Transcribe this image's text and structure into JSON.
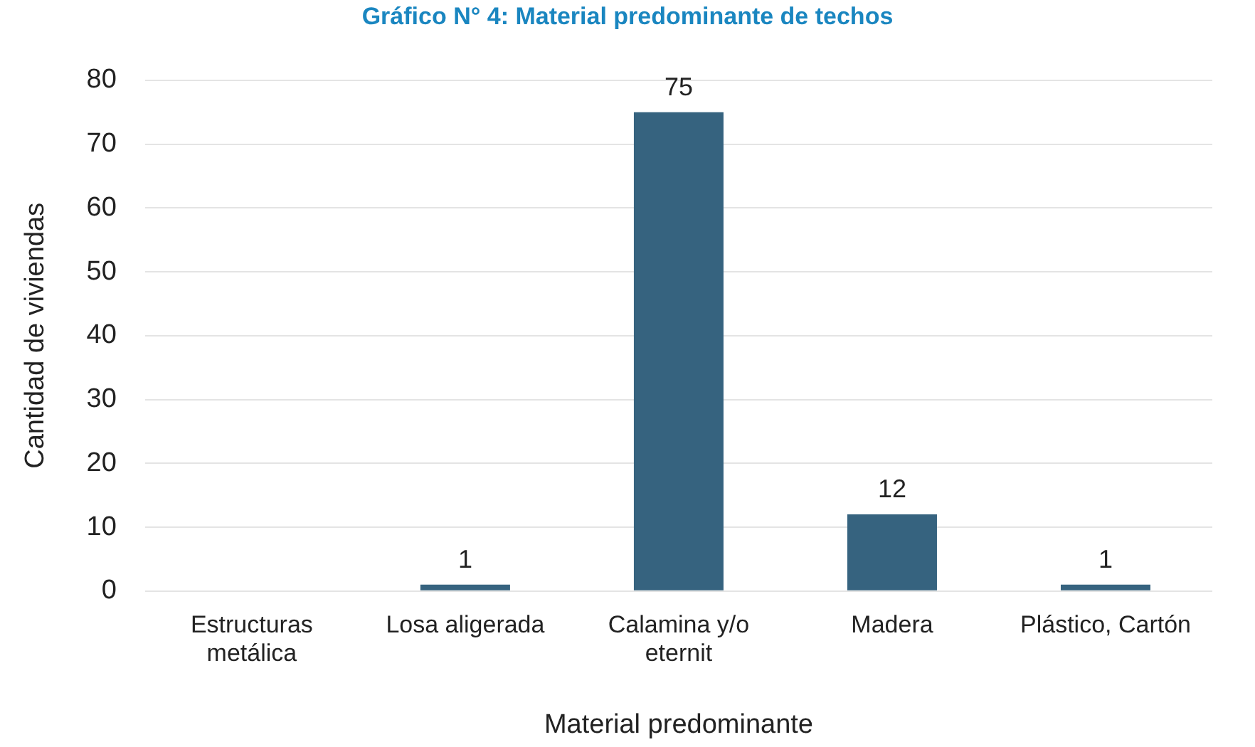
{
  "chart_data": {
    "type": "bar",
    "title": "Gráfico N° 4: Material predominante de techos",
    "xlabel": "Material predominante",
    "ylabel": "Cantidad de viviendas",
    "categories": [
      "Estructuras metálica",
      "Losa aligerada",
      "Calamina y/o eternit",
      "Madera",
      "Plástico, Cartón"
    ],
    "values": [
      0,
      1,
      75,
      12,
      1
    ],
    "value_labels": [
      null,
      "1",
      "75",
      "12",
      "1"
    ],
    "color": "#36637f",
    "ylim": [
      0,
      80
    ],
    "yticks": [
      0,
      10,
      20,
      30,
      40,
      50,
      60,
      70,
      80
    ],
    "grid": "y",
    "legend": false
  }
}
